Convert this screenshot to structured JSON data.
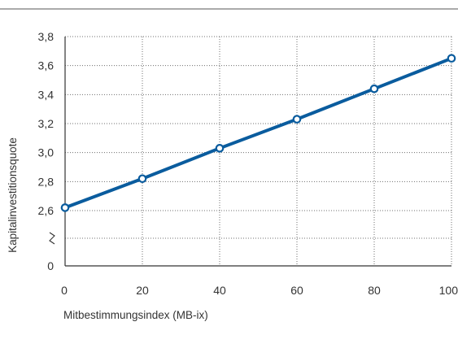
{
  "chart_data": {
    "type": "line",
    "title": "",
    "xlabel": "Mitbestimmungsindex (MB-ix)",
    "ylabel": "Kapitalinvestitionsquote",
    "x": [
      0,
      20,
      40,
      60,
      80,
      100
    ],
    "series": [
      {
        "values": [
          2.62,
          2.82,
          3.03,
          3.23,
          3.44,
          3.65
        ]
      }
    ],
    "xlim": [
      0,
      100
    ],
    "ylim_upper": [
      2.6,
      3.8
    ],
    "x_ticks": [
      0,
      20,
      40,
      60,
      80,
      100
    ],
    "x_tick_labels": [
      "0",
      "20",
      "40",
      "60",
      "80",
      "100"
    ],
    "y_ticks": [
      2.6,
      2.8,
      3.0,
      3.2,
      3.4,
      3.6,
      3.8
    ],
    "y_tick_labels": [
      "2,6",
      "2,8",
      "3,0",
      "3,2",
      "3,4",
      "3,6",
      "3,8"
    ],
    "y_break_label": "0",
    "axis_break": true,
    "grid": "dotted",
    "line_color": "#0a5c9e",
    "marker_fill": "#ffffff",
    "grid_color": "#6f6f6f",
    "axis_color": "#333333"
  }
}
